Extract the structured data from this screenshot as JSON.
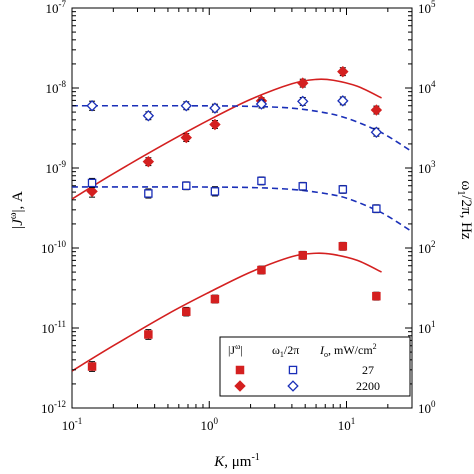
{
  "chart_data": {
    "type": "scatter",
    "title": "",
    "xlabel": "K, μm⁻¹",
    "ylabel_left": "|J^ω|, A",
    "ylabel_right": "ω₁/2π, Hz",
    "x_scale": "log",
    "y_left_scale": "log",
    "y_right_scale": "log",
    "xlim": [
      0.1,
      30
    ],
    "ylim_left": [
      1e-12,
      1e-07
    ],
    "ylim_right": [
      1,
      100000
    ],
    "x_ticks": [
      {
        "value": 0.1,
        "base": "10",
        "exp": "-1"
      },
      {
        "value": 1,
        "base": "10",
        "exp": "0"
      },
      {
        "value": 10,
        "base": "10",
        "exp": "1"
      }
    ],
    "y_left_ticks": [
      {
        "value": 1e-12,
        "base": "10",
        "exp": "-12"
      },
      {
        "value": 1e-11,
        "base": "10",
        "exp": "-11"
      },
      {
        "value": 1e-10,
        "base": "10",
        "exp": "-10"
      },
      {
        "value": 1e-09,
        "base": "10",
        "exp": "-9"
      },
      {
        "value": 1e-08,
        "base": "10",
        "exp": "-8"
      },
      {
        "value": 1e-07,
        "base": "10",
        "exp": "-7"
      }
    ],
    "y_right_ticks": [
      {
        "value": 1,
        "base": "10",
        "exp": "0"
      },
      {
        "value": 10,
        "base": "10",
        "exp": "1"
      },
      {
        "value": 100,
        "base": "10",
        "exp": "2"
      },
      {
        "value": 1000,
        "base": "10",
        "exp": "3"
      },
      {
        "value": 10000,
        "base": "10",
        "exp": "4"
      },
      {
        "value": 100000,
        "base": "10",
        "exp": "5"
      }
    ],
    "series": [
      {
        "axis": "left",
        "marker": "filled-square",
        "color": "#d42020",
        "points": [
          {
            "x": 0.14,
            "y": 3.3e-12,
            "err": 1.15
          },
          {
            "x": 0.36,
            "y": 8.3e-12,
            "err": 1.15
          },
          {
            "x": 0.68,
            "y": 1.6e-11,
            "err": 1.13
          },
          {
            "x": 1.1,
            "y": 2.3e-11,
            "err": 1.12
          },
          {
            "x": 2.4,
            "y": 5.3e-11,
            "err": 1.12
          },
          {
            "x": 4.8,
            "y": 8.1e-11,
            "err": 1.12
          },
          {
            "x": 9.4,
            "y": 1.05e-10,
            "err": 1.12
          },
          {
            "x": 16.5,
            "y": 2.5e-11,
            "err": 1.12
          }
        ]
      },
      {
        "axis": "left",
        "marker": "filled-diamond",
        "color": "#d42020",
        "points": [
          {
            "x": 0.14,
            "y": 5.1e-10,
            "err": 1.18
          },
          {
            "x": 0.36,
            "y": 1.2e-09,
            "err": 1.12
          },
          {
            "x": 0.68,
            "y": 2.4e-09,
            "err": 1.12
          },
          {
            "x": 1.1,
            "y": 3.5e-09,
            "err": 1.12
          },
          {
            "x": 2.4,
            "y": 6.9e-09,
            "err": 1.1
          },
          {
            "x": 4.8,
            "y": 1.15e-08,
            "err": 1.12
          },
          {
            "x": 9.4,
            "y": 1.6e-08,
            "err": 1.12
          },
          {
            "x": 16.5,
            "y": 5.3e-09,
            "err": 1.12
          }
        ]
      },
      {
        "axis": "right",
        "marker": "open-square",
        "color": "#1a2fb8",
        "points": [
          {
            "x": 0.14,
            "y": 650,
            "err": 1.14
          },
          {
            "x": 0.36,
            "y": 480,
            "err": 1.14
          },
          {
            "x": 0.68,
            "y": 600,
            "err": 1.12
          },
          {
            "x": 1.1,
            "y": 510,
            "err": 1.14
          },
          {
            "x": 2.4,
            "y": 690,
            "err": 1.12
          },
          {
            "x": 4.8,
            "y": 590,
            "err": 1.12
          },
          {
            "x": 9.4,
            "y": 540,
            "err": 1.12
          },
          {
            "x": 16.5,
            "y": 310,
            "err": 1.12
          }
        ]
      },
      {
        "axis": "right",
        "marker": "open-diamond",
        "color": "#1a2fb8",
        "points": [
          {
            "x": 0.14,
            "y": 6000,
            "err": 1.14
          },
          {
            "x": 0.36,
            "y": 4500,
            "err": 1.12
          },
          {
            "x": 0.68,
            "y": 6000,
            "err": 1.12
          },
          {
            "x": 1.1,
            "y": 5600,
            "err": 1.12
          },
          {
            "x": 2.4,
            "y": 6300,
            "err": 1.12
          },
          {
            "x": 4.8,
            "y": 6800,
            "err": 1.12
          },
          {
            "x": 9.4,
            "y": 6900,
            "err": 1.12
          },
          {
            "x": 16.5,
            "y": 2800,
            "err": 1.12
          }
        ]
      }
    ],
    "fit_curves": [
      {
        "axis": "left",
        "style": "solid",
        "color": "#d42020",
        "points": [
          [
            0.1,
            2.9e-12
          ],
          [
            0.2,
            6e-12
          ],
          [
            0.5,
            1.5e-11
          ],
          [
            1,
            2.8e-11
          ],
          [
            2,
            5e-11
          ],
          [
            4,
            7.8e-11
          ],
          [
            6,
            8.6e-11
          ],
          [
            8,
            8.3e-11
          ],
          [
            12,
            7e-11
          ],
          [
            18,
            5e-11
          ]
        ]
      },
      {
        "axis": "left",
        "style": "solid",
        "color": "#d42020",
        "points": [
          [
            0.1,
            4.1e-10
          ],
          [
            0.2,
            8.5e-10
          ],
          [
            0.5,
            2.1e-09
          ],
          [
            1,
            4e-09
          ],
          [
            2,
            7.2e-09
          ],
          [
            4,
            1.13e-08
          ],
          [
            6,
            1.28e-08
          ],
          [
            8,
            1.25e-08
          ],
          [
            12,
            1.05e-08
          ],
          [
            18,
            7.5e-09
          ]
        ]
      },
      {
        "axis": "right",
        "style": "dashed",
        "color": "#1a2fb8",
        "points": [
          [
            0.1,
            580
          ],
          [
            0.5,
            580
          ],
          [
            1,
            578
          ],
          [
            2,
            570
          ],
          [
            4,
            540
          ],
          [
            7,
            480
          ],
          [
            10,
            420
          ],
          [
            15,
            320
          ],
          [
            20,
            250
          ],
          [
            30,
            160
          ]
        ]
      },
      {
        "axis": "right",
        "style": "dashed",
        "color": "#1a2fb8",
        "points": [
          [
            0.1,
            6000
          ],
          [
            0.5,
            6000
          ],
          [
            1,
            5980
          ],
          [
            2,
            5900
          ],
          [
            4,
            5600
          ],
          [
            7,
            4900
          ],
          [
            10,
            4200
          ],
          [
            15,
            3200
          ],
          [
            20,
            2500
          ],
          [
            30,
            1600
          ]
        ]
      }
    ],
    "legend": {
      "placement": "bottom-right",
      "header_j": "|J",
      "header_j_sup": "ω",
      "header_j_close": "|",
      "header_w": "ω",
      "header_w_sub": "1",
      "header_w_rest": "/2π",
      "header_i": "I",
      "header_i_sub": "o",
      "header_i_rest": ", mW/cm",
      "header_i_sup": "2",
      "rows": [
        {
          "value": "27",
          "marker_j": "filled-square",
          "marker_w": "open-square"
        },
        {
          "value": "2200",
          "marker_j": "filled-diamond",
          "marker_w": "open-diamond"
        }
      ]
    }
  }
}
